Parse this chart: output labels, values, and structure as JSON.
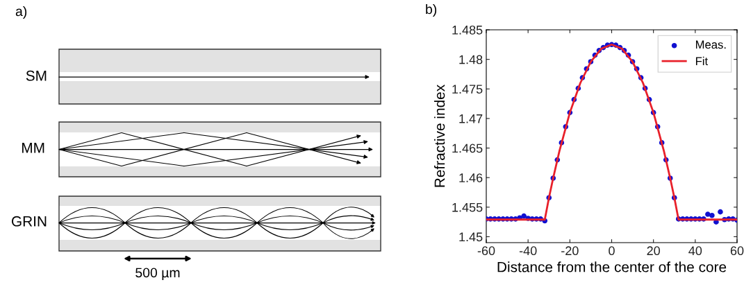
{
  "chart_data": [
    {
      "type": "other",
      "title": "a)",
      "annotations": [
        "SM",
        "MM",
        "GRIN",
        "500 µm"
      ]
    },
    {
      "type": "line",
      "title": "b)",
      "xlabel": "Distance from the center of the core",
      "ylabel": "Refractive index",
      "xlim": [
        -60,
        60
      ],
      "ylim": [
        1.449,
        1.485
      ],
      "xticks": [
        -60,
        -40,
        -20,
        0,
        20,
        40,
        60
      ],
      "yticks": [
        1.45,
        1.455,
        1.46,
        1.465,
        1.47,
        1.475,
        1.48,
        1.485
      ],
      "legend": "top right",
      "grid": false,
      "series": [
        {
          "name": "Meas.",
          "type": "scatter",
          "marker": "circle",
          "color": "#1010d0",
          "x": [
            -60,
            -58,
            -56,
            -54,
            -52,
            -50,
            -48,
            -46,
            -44,
            -42,
            -40,
            -38,
            -36,
            -34,
            -32,
            -30,
            -28,
            -26,
            -24,
            -22,
            -20,
            -18,
            -16,
            -14,
            -12,
            -10,
            -8,
            -6,
            -4,
            -2,
            0,
            2,
            4,
            6,
            8,
            10,
            12,
            14,
            16,
            18,
            20,
            22,
            24,
            26,
            28,
            30,
            32,
            34,
            36,
            38,
            40,
            42,
            44,
            46,
            48,
            50,
            52,
            54,
            56,
            58,
            60
          ],
          "values": [
            1.453,
            1.453,
            1.453,
            1.453,
            1.453,
            1.453,
            1.453,
            1.453,
            1.4532,
            1.4535,
            1.4531,
            1.453,
            1.453,
            1.453,
            1.4527,
            1.4566,
            1.4599,
            1.463,
            1.4659,
            1.4686,
            1.471,
            1.4732,
            1.4751,
            1.4769,
            1.4784,
            1.4796,
            1.4807,
            1.4815,
            1.482,
            1.4824,
            1.4825,
            1.4824,
            1.482,
            1.4815,
            1.4807,
            1.4796,
            1.4784,
            1.4769,
            1.4751,
            1.4732,
            1.471,
            1.4686,
            1.4659,
            1.463,
            1.4599,
            1.4566,
            1.453,
            1.453,
            1.453,
            1.453,
            1.453,
            1.453,
            1.453,
            1.4538,
            1.4536,
            1.4525,
            1.4542,
            1.4529,
            1.453,
            1.453,
            1.4528
          ]
        },
        {
          "name": "Fit",
          "type": "line",
          "line_style": "solid",
          "color": "#e8202a",
          "x": [
            -60,
            -32,
            -30,
            -28,
            -25,
            -20,
            -15,
            -10,
            -5,
            0,
            5,
            10,
            15,
            20,
            25,
            28,
            30,
            32,
            60
          ],
          "values": [
            1.4529,
            1.4529,
            1.4566,
            1.4599,
            1.4645,
            1.471,
            1.476,
            1.4796,
            1.4818,
            1.4825,
            1.4818,
            1.4796,
            1.476,
            1.471,
            1.4645,
            1.4599,
            1.4566,
            1.4529,
            1.4529
          ]
        }
      ]
    }
  ]
}
